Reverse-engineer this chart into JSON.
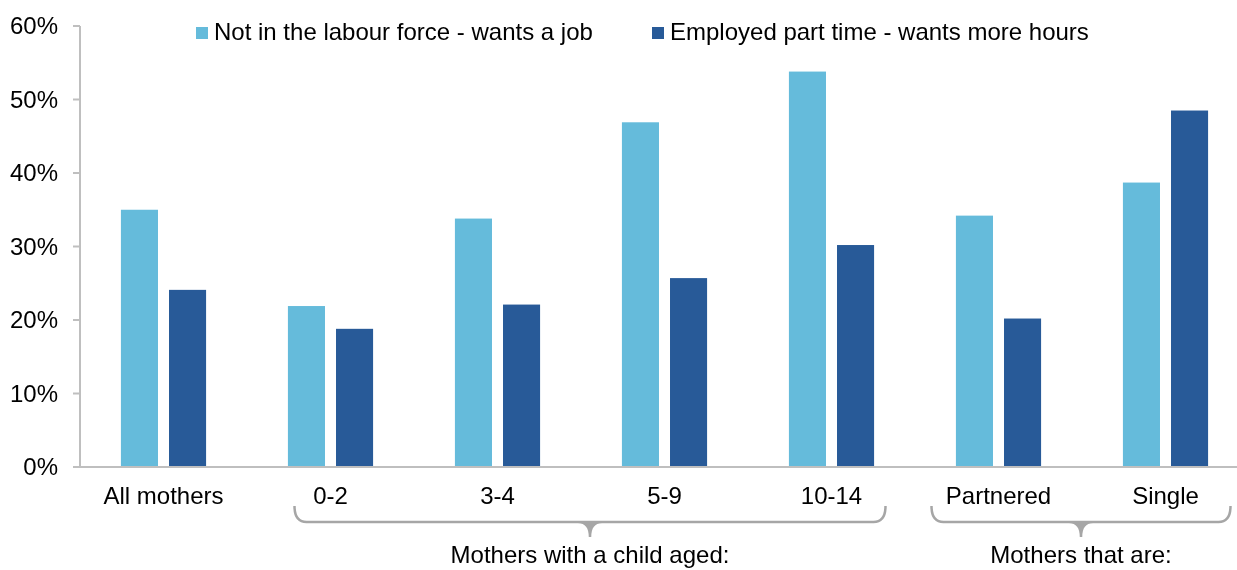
{
  "chart_data": {
    "type": "bar",
    "categories": [
      "All mothers",
      "0-2",
      "3-4",
      "5-9",
      "10-14",
      "Partnered",
      "Single"
    ],
    "series": [
      {
        "name": "Not in the labour force - wants a job",
        "color": "#65bbdb",
        "values": [
          35.0,
          21.9,
          33.8,
          46.9,
          53.8,
          34.2,
          38.7
        ]
      },
      {
        "name": "Employed part time - wants more hours",
        "color": "#285a98",
        "values": [
          24.1,
          18.8,
          22.1,
          25.7,
          30.2,
          20.2,
          48.5
        ]
      }
    ],
    "ylim": [
      0,
      60
    ],
    "yticks": [
      {
        "value": 0,
        "label": "0%"
      },
      {
        "value": 10,
        "label": "10%"
      },
      {
        "value": 20,
        "label": "20%"
      },
      {
        "value": 30,
        "label": "30%"
      },
      {
        "value": 40,
        "label": "40%"
      },
      {
        "value": 50,
        "label": "50%"
      },
      {
        "value": 60,
        "label": "60%"
      }
    ],
    "legend": "top",
    "annotations": [
      "Mothers with a child aged:",
      "Mothers that are:"
    ]
  }
}
